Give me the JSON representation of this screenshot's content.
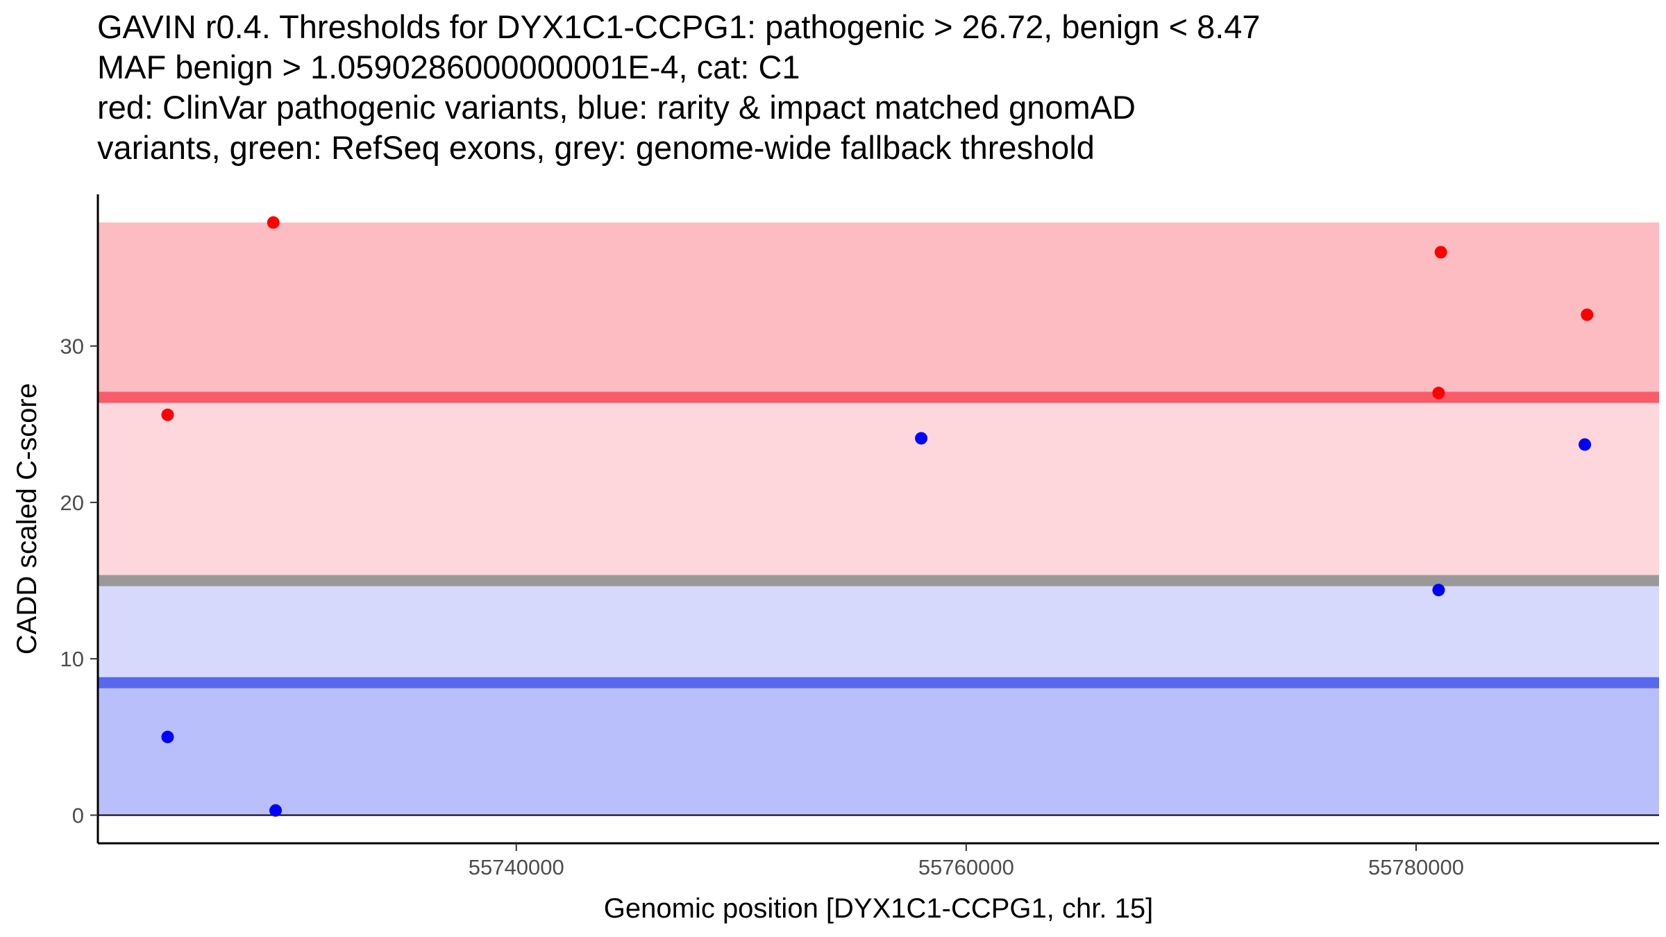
{
  "chart_data": {
    "type": "scatter",
    "title_lines": [
      "GAVIN r0.4. Thresholds for DYX1C1-CCPG1: pathogenic > 26.72, benign < 8.47",
      "MAF benign > 1.0590286000000001E-4, cat: C1",
      "red: ClinVar pathogenic variants, blue: rarity & impact matched gnomAD",
      "variants, green: RefSeq exons, grey: genome-wide fallback threshold"
    ],
    "xlabel": "Genomic position [DYX1C1-CCPG1, chr. 15]",
    "ylabel": "CADD scaled C-score",
    "xlim": [
      55721400,
      55790800
    ],
    "ylim": [
      -1.8,
      39.7
    ],
    "x_ticks": [
      55740000,
      55760000,
      55780000
    ],
    "x_tick_labels": [
      "55740000",
      "55760000",
      "55780000"
    ],
    "y_ticks": [
      0,
      10,
      20,
      30
    ],
    "y_tick_labels": [
      "0",
      "10",
      "20",
      "30"
    ],
    "bands": [
      {
        "name": "pathogenic-upper-band",
        "y0": 26.72,
        "y1": 37.9,
        "color": "#fdbcc1"
      },
      {
        "name": "pathogenic-lower-band",
        "y0": 15.0,
        "y1": 26.72,
        "color": "#fdd7dc"
      },
      {
        "name": "benign-upper-band",
        "y0": 8.47,
        "y1": 15.0,
        "color": "#d6d9fc"
      },
      {
        "name": "benign-lower-band",
        "y0": 0,
        "y1": 8.47,
        "color": "#b9bffa"
      }
    ],
    "threshold_lines": [
      {
        "name": "pathogenic-threshold",
        "y": 26.72,
        "color": "#f85c6b"
      },
      {
        "name": "fallback-threshold",
        "y": 15.0,
        "color": "#999999"
      },
      {
        "name": "benign-threshold",
        "y": 8.47,
        "color": "#5768ee"
      }
    ],
    "series": [
      {
        "name": "ClinVar pathogenic variants",
        "color": "#ff0000",
        "x": [
          55724500,
          55729200,
          55781000,
          55781100,
          55787600
        ],
        "y": [
          25.6,
          37.9,
          27.0,
          36.0,
          32.0
        ]
      },
      {
        "name": "rarity & impact matched gnomAD variants",
        "color": "#0000ff",
        "x": [
          55724500,
          55729300,
          55758000,
          55781000,
          55787500
        ],
        "y": [
          5.0,
          0.3,
          24.1,
          14.4,
          23.7
        ]
      }
    ]
  }
}
